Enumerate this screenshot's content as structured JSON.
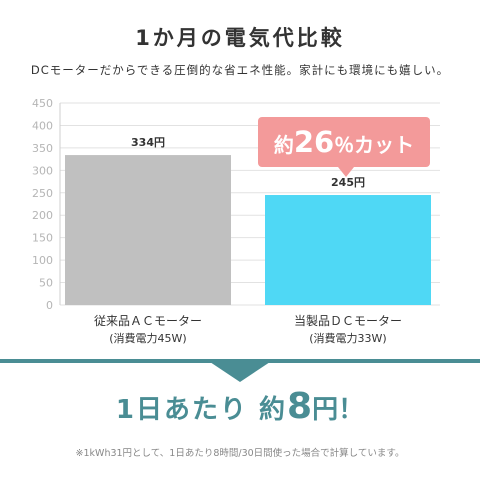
{
  "header": {
    "title": "1か月の電気代比較",
    "subtitle": "DCモーターだからできる圧倒的な省エネ性能。家計にも環境にも嬉しい。"
  },
  "callout": {
    "prefix": "約",
    "number": "26",
    "suffix": "％カット",
    "color": "#f39a9a"
  },
  "result": {
    "prefix": "1日あたり 約",
    "number": "8",
    "suffix": "円！",
    "color": "#4a8d94"
  },
  "footnote": "※1kWh31円として、1日あたり8時間/30日間使った場合で計算しています。",
  "chart_data": {
    "type": "bar",
    "categories": [
      "従来品ＡＣモーター",
      "当製品ＤＣモーター"
    ],
    "category_notes": [
      "(消費電力45W)",
      "(消費電力33W)"
    ],
    "values": [
      334,
      245
    ],
    "value_labels": [
      "334円",
      "245円"
    ],
    "colors": [
      "#c0c0c0",
      "#4fd8f5"
    ],
    "ylim": [
      0,
      450
    ],
    "yticks": [
      0,
      50,
      100,
      150,
      200,
      250,
      300,
      350,
      400,
      450
    ],
    "grid": true
  }
}
